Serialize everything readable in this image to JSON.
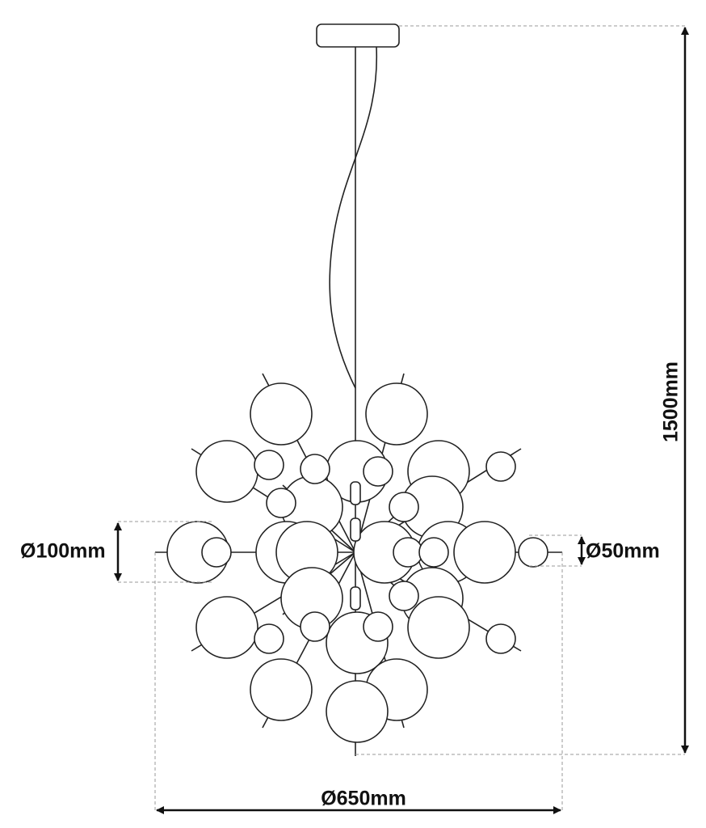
{
  "dimensions": {
    "large_globe": "Ø100mm",
    "small_globe": "Ø50mm",
    "height": "1500mm",
    "width": "Ø650mm"
  }
}
